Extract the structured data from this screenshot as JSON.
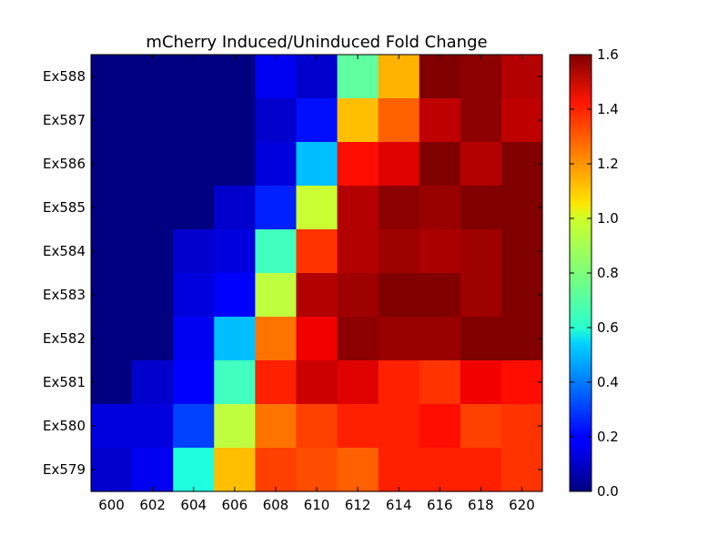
{
  "chart_data": {
    "type": "heatmap",
    "title": "mCherry Induced/Uninduced Fold Change",
    "x_categories": [
      "600",
      "602",
      "604",
      "606",
      "608",
      "610",
      "612",
      "614",
      "616",
      "618",
      "620"
    ],
    "y_categories": [
      "Ex588",
      "Ex587",
      "Ex586",
      "Ex585",
      "Ex584",
      "Ex583",
      "Ex582",
      "Ex581",
      "Ex580",
      "Ex579"
    ],
    "values": [
      [
        0.0,
        0.0,
        0.0,
        0.0,
        0.18,
        0.12,
        0.75,
        1.12,
        1.62,
        1.58,
        1.52
      ],
      [
        0.0,
        0.0,
        0.0,
        0.0,
        0.12,
        0.22,
        1.1,
        1.25,
        1.5,
        1.58,
        1.5
      ],
      [
        0.0,
        0.0,
        0.0,
        0.0,
        0.15,
        0.5,
        1.38,
        1.45,
        1.6,
        1.52,
        1.6
      ],
      [
        0.0,
        0.0,
        0.0,
        0.12,
        0.25,
        0.92,
        1.52,
        1.58,
        1.56,
        1.6,
        1.62
      ],
      [
        0.0,
        0.0,
        0.12,
        0.15,
        0.7,
        1.32,
        1.52,
        1.55,
        1.53,
        1.55,
        1.75
      ],
      [
        0.0,
        0.0,
        0.15,
        0.2,
        0.9,
        1.52,
        1.55,
        1.72,
        1.72,
        1.55,
        1.62
      ],
      [
        0.0,
        0.0,
        0.18,
        0.5,
        1.22,
        1.42,
        1.58,
        1.56,
        1.56,
        1.62,
        1.72
      ],
      [
        0.0,
        0.12,
        0.2,
        0.7,
        1.35,
        1.48,
        1.45,
        1.35,
        1.32,
        1.42,
        1.38
      ],
      [
        0.15,
        0.15,
        0.3,
        0.9,
        1.22,
        1.3,
        1.35,
        1.35,
        1.38,
        1.3,
        1.32
      ],
      [
        0.12,
        0.18,
        0.65,
        1.1,
        1.3,
        1.28,
        1.25,
        1.35,
        1.35,
        1.35,
        1.32
      ]
    ],
    "colorbar": {
      "range": [
        0.0,
        1.6
      ],
      "ticks": [
        "0.0",
        "0.2",
        "0.4",
        "0.6",
        "0.8",
        "1.0",
        "1.2",
        "1.4",
        "1.6"
      ],
      "colormap": "jet"
    }
  }
}
